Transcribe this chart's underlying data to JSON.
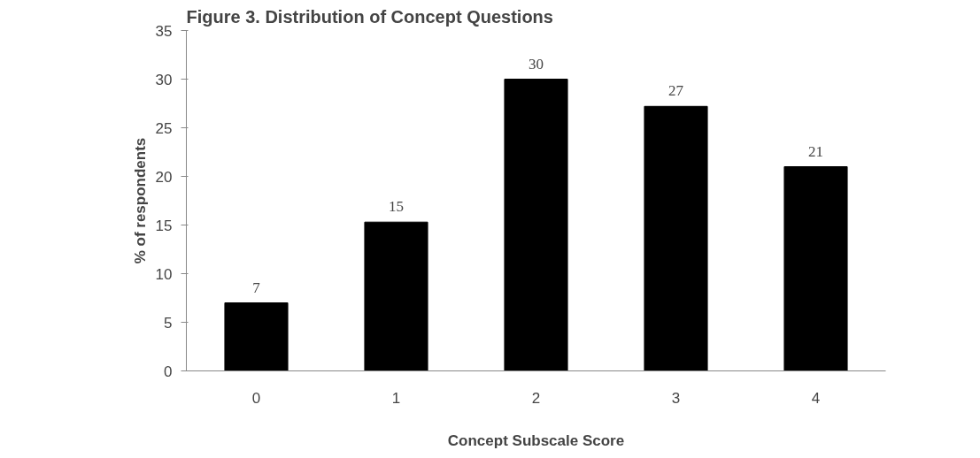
{
  "chart_data": {
    "type": "bar",
    "title": "Figure 3.  Distribution of Concept Questions",
    "xlabel": "Concept Subscale Score",
    "ylabel": "% of respondents",
    "categories": [
      "0",
      "1",
      "2",
      "3",
      "4"
    ],
    "values": [
      7,
      15.3,
      30,
      27.2,
      21
    ],
    "value_labels": [
      "7",
      "15",
      "30",
      "27",
      "21"
    ],
    "color": "#000000",
    "ylim": [
      0,
      35
    ],
    "yticks": [
      0,
      5,
      10,
      15,
      20,
      25,
      30,
      35
    ],
    "grid": false
  }
}
